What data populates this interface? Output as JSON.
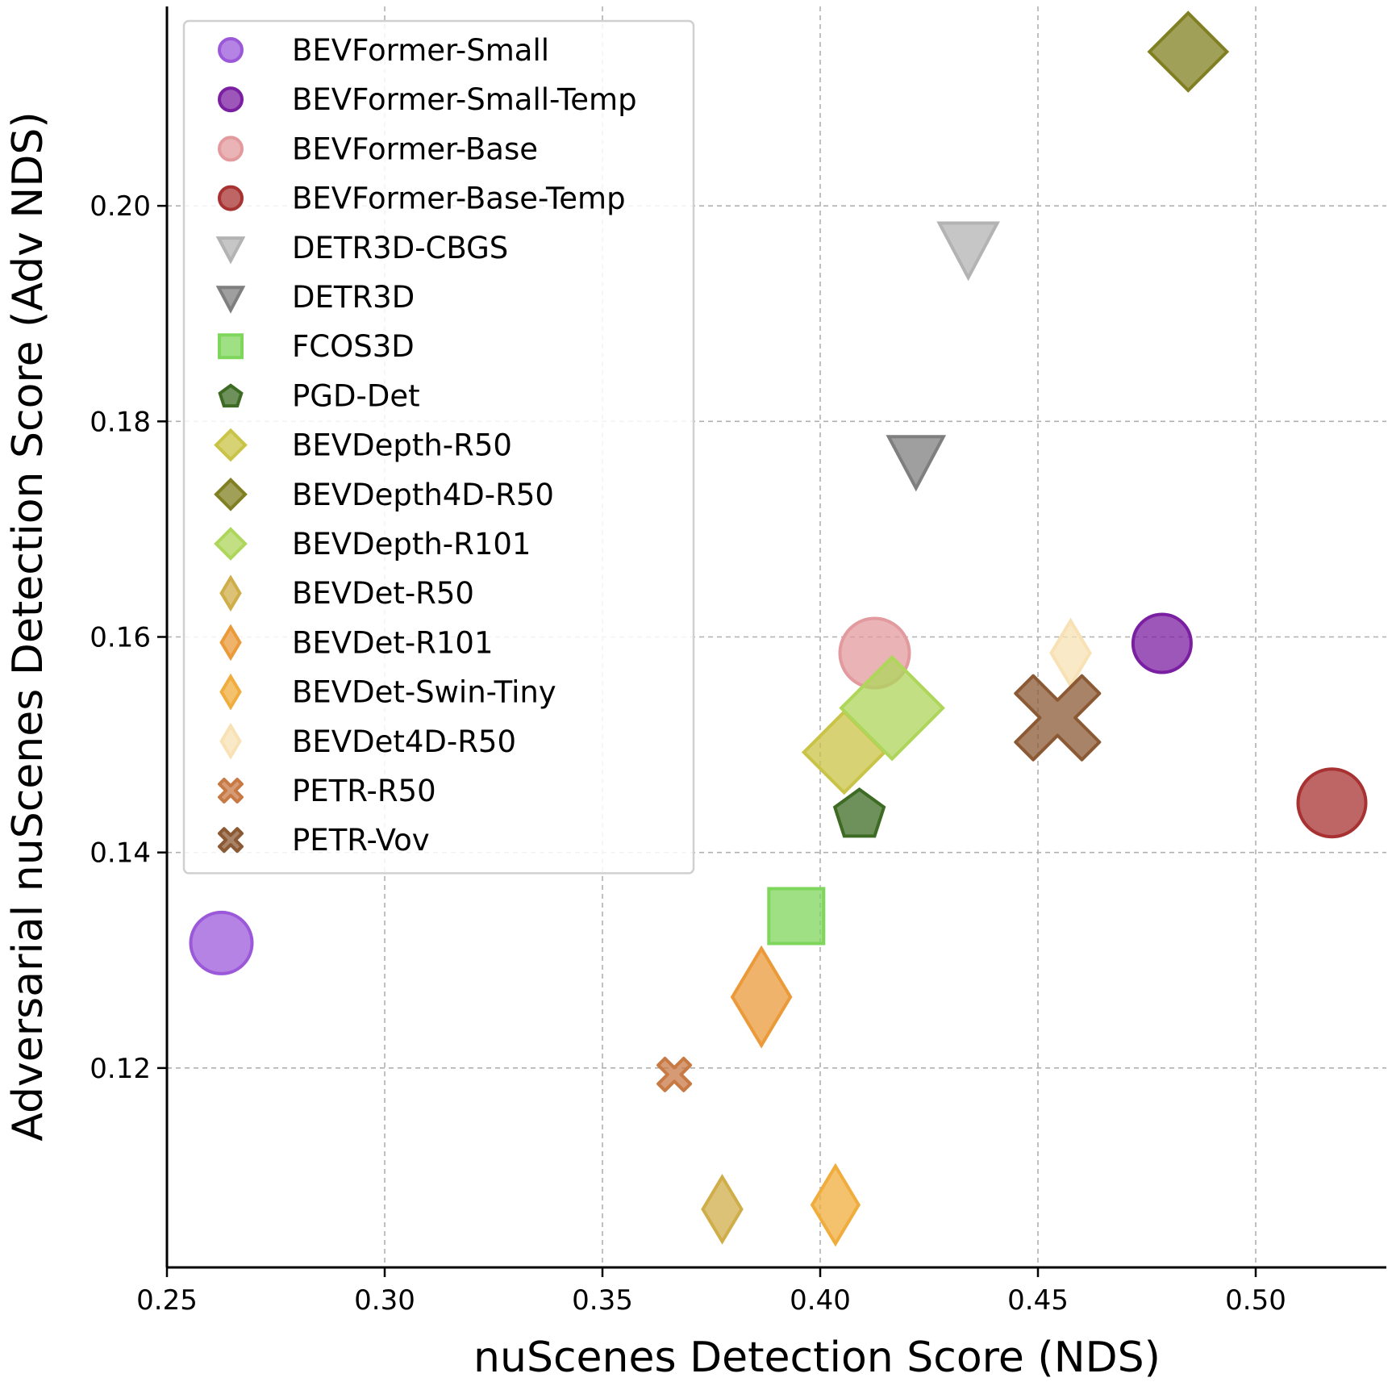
{
  "chart_data": {
    "type": "scatter",
    "title": "",
    "xlabel": "nuScenes Detection Score (NDS)",
    "ylabel": "Adversarial nuScenes Detection Score (Adv NDS)",
    "xlim": [
      0.25,
      0.53
    ],
    "ylim": [
      0.1015,
      0.2185
    ],
    "xticks": [
      "0.25",
      "0.30",
      "0.35",
      "0.40",
      "0.45",
      "0.50"
    ],
    "yticks": [
      "0.12",
      "0.14",
      "0.16",
      "0.18",
      "0.20"
    ],
    "grid": true,
    "legend_position": "upper-left",
    "series": [
      {
        "name": "BEVFormer-Small",
        "marker": "circle",
        "color": "#9b59d9",
        "x": 0.2625,
        "y": 0.1316
      },
      {
        "name": "BEVFormer-Small-Temp",
        "marker": "circle",
        "color": "#7b1fa2",
        "x": 0.4785,
        "y": 0.1594
      },
      {
        "name": "BEVFormer-Base",
        "marker": "circle",
        "color": "#e39a9e",
        "x": 0.4125,
        "y": 0.1585
      },
      {
        "name": "BEVFormer-Base-Temp",
        "marker": "circle",
        "color": "#a83232",
        "x": 0.5175,
        "y": 0.1446
      },
      {
        "name": "DETR3D-CBGS",
        "marker": "triangle-down",
        "color": "#b3b3b3",
        "x": 0.434,
        "y": 0.1963
      },
      {
        "name": "DETR3D",
        "marker": "triangle-down",
        "color": "#7f7f7f",
        "x": 0.422,
        "y": 0.1766
      },
      {
        "name": "FCOS3D",
        "marker": "square",
        "color": "#7fd65c",
        "x": 0.3945,
        "y": 0.1341
      },
      {
        "name": "PGD-Det",
        "marker": "pentagon",
        "color": "#3d6b24",
        "x": 0.409,
        "y": 0.1437
      },
      {
        "name": "BEVDepth-R50",
        "marker": "diamond",
        "color": "#c9c447",
        "x": 0.4055,
        "y": 0.1493
      },
      {
        "name": "BEVDepth4D-R50",
        "marker": "diamond",
        "color": "#808022",
        "x": 0.4845,
        "y": 0.2143
      },
      {
        "name": "BEVDepth-R101",
        "marker": "diamond",
        "color": "#aed65a",
        "x": 0.4165,
        "y": 0.1534
      },
      {
        "name": "BEVDet-R50",
        "marker": "thin-diamond",
        "color": "#cfae4a",
        "x": 0.3775,
        "y": 0.1069
      },
      {
        "name": "BEVDet-R101",
        "marker": "thin-diamond",
        "color": "#eb9a3a",
        "x": 0.3865,
        "y": 0.1266
      },
      {
        "name": "BEVDet-Swin-Tiny",
        "marker": "thin-diamond",
        "color": "#f0ac3c",
        "x": 0.4035,
        "y": 0.1073
      },
      {
        "name": "BEVDet4D-R50",
        "marker": "thin-diamond",
        "color": "#f8e1b4",
        "x": 0.4575,
        "y": 0.1585
      },
      {
        "name": "PETR-R50",
        "marker": "x-filled",
        "color": "#c87a45",
        "x": 0.3665,
        "y": 0.1194
      },
      {
        "name": "PETR-Vov",
        "marker": "x-filled",
        "color": "#8b5a35",
        "x": 0.4545,
        "y": 0.1525
      }
    ]
  }
}
